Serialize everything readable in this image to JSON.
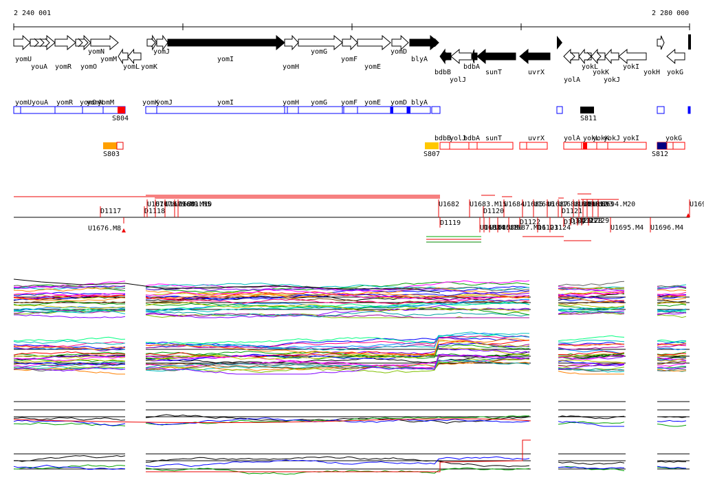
{
  "ruler": {
    "start_label": "2 240 001",
    "end_label": "2 280 000"
  },
  "genes": [
    {
      "name": "yomU",
      "dir": "+",
      "fill": "w"
    },
    {
      "name": "youA",
      "dir": "+",
      "fill": "w"
    },
    {
      "name": "yomR",
      "dir": "+",
      "fill": "w"
    },
    {
      "name": "yomO",
      "dir": "+",
      "fill": "w"
    },
    {
      "name": "yomN",
      "dir": "+",
      "fill": "w"
    },
    {
      "name": "yomM",
      "dir": "-",
      "fill": "w"
    },
    {
      "name": "yomL",
      "dir": "-",
      "fill": "w"
    },
    {
      "name": "yomK",
      "dir": "+",
      "fill": "w"
    },
    {
      "name": "yomJ",
      "dir": "+",
      "fill": "w"
    },
    {
      "name": "yomI",
      "dir": "+",
      "fill": "b"
    },
    {
      "name": "yomH",
      "dir": "+",
      "fill": "w"
    },
    {
      "name": "yomG",
      "dir": "+",
      "fill": "w"
    },
    {
      "name": "yomF",
      "dir": "+",
      "fill": "w"
    },
    {
      "name": "yomE",
      "dir": "+",
      "fill": "w"
    },
    {
      "name": "yomD",
      "dir": "+",
      "fill": "w"
    },
    {
      "name": "blyA",
      "dir": "+",
      "fill": "b"
    },
    {
      "name": "bdbB",
      "dir": "-",
      "fill": "b"
    },
    {
      "name": "yolJ",
      "dir": "-",
      "fill": "w"
    },
    {
      "name": "bdbA",
      "dir": "-",
      "fill": "b"
    },
    {
      "name": "sunT",
      "dir": "-",
      "fill": "b"
    },
    {
      "name": "uvrX",
      "dir": "-",
      "fill": "b"
    },
    {
      "name": "yolA",
      "dir": "-",
      "fill": "w"
    },
    {
      "name": "yokL",
      "dir": "-",
      "fill": "w"
    },
    {
      "name": "yokK",
      "dir": "-",
      "fill": "w"
    },
    {
      "name": "yokJ",
      "dir": "-",
      "fill": "w"
    },
    {
      "name": "yokI",
      "dir": "-",
      "fill": "w"
    },
    {
      "name": "yokH",
      "dir": "+",
      "fill": "w"
    },
    {
      "name": "yokG",
      "dir": "-",
      "fill": "w"
    }
  ],
  "upper_track_labels": [
    "yomU",
    "youA",
    "yomR",
    "yomO",
    "yomN",
    "yomM",
    "yomK",
    "yomJ",
    "yomI",
    "yomH",
    "yomG",
    "yomF",
    "yomE",
    "yomD",
    "blyA"
  ],
  "lower_track_labels": [
    "bdbB",
    "yolJ",
    "bdbA",
    "sunT",
    "uvrX",
    "yolA",
    "yokL",
    "yokK",
    "yokJ",
    "yokI",
    "yokG"
  ],
  "site_labels": [
    {
      "name": "S804",
      "color": "#ff0000"
    },
    {
      "name": "S811",
      "color": "#000000"
    },
    {
      "name": "S803",
      "color": "#ffa000"
    },
    {
      "name": "S807",
      "color": "#ffc800"
    },
    {
      "name": "S812",
      "color": "#000080"
    }
  ],
  "features_top": [
    "D1117",
    "U1676.M8",
    "D1118",
    "U1677",
    "U1678",
    "U1679.M9",
    "U1680.M10",
    "U1681.M5",
    "U1682",
    "U1683.M15",
    "U1684",
    "U1685",
    "U1686",
    "U1687",
    "U1688",
    "U1689",
    "U1690",
    "U1691",
    "U1692",
    "U1693",
    "U1694.M20",
    "D1120",
    "D1121",
    "U169"
  ],
  "features_bottom": [
    "D1119",
    "U1683",
    "U1684",
    "U1685.M6",
    "U1686",
    "U1687.M16",
    "D1122",
    "D1123",
    "D1124",
    "D1125",
    "D1126",
    "D1127",
    "D1128",
    "D1129",
    "U1695.M4",
    "U1696.M4"
  ],
  "colors": {
    "blue": "#0000ff",
    "red": "#ff0000",
    "black": "#000000"
  },
  "panels": [
    "panel-expression-1",
    "panel-expression-2",
    "panel-ratio-1",
    "panel-ratio-2"
  ]
}
